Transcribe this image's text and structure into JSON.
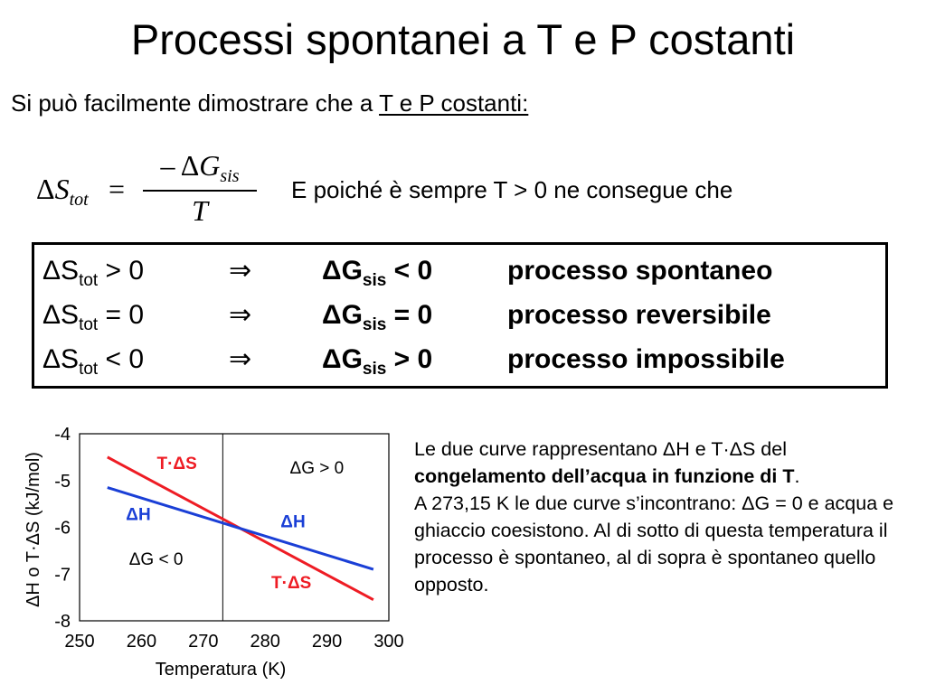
{
  "title": "Processi spontanei a T e P costanti",
  "intro": {
    "text": "Si può facilmente dimostrare che a ",
    "underlined": "T e P costanti:"
  },
  "formula": {
    "lhs_symbol": "Δ",
    "lhs_var": "S",
    "lhs_sub": "tot",
    "equals": "=",
    "numerator_prefix": "– Δ",
    "numerator_var": "G",
    "numerator_sub": "sis",
    "denominator": "T"
  },
  "consequence_text": "E poiché è sempre T > 0 ne consegue che",
  "conditions": [
    {
      "ds": "ΔS",
      "ds_sub": "tot",
      "ds_rel": " > 0",
      "implies": "⇒",
      "dg": "ΔG",
      "dg_sub": "sis",
      "dg_rel": " < 0",
      "result": "processo spontaneo"
    },
    {
      "ds": "ΔS",
      "ds_sub": "tot",
      "ds_rel": " = 0",
      "implies": "⇒",
      "dg": "ΔG",
      "dg_sub": "sis",
      "dg_rel": " = 0",
      "result": "processo reversibile"
    },
    {
      "ds": "ΔS",
      "ds_sub": "tot",
      "ds_rel": " < 0",
      "implies": "⇒",
      "dg": "ΔG",
      "dg_sub": "sis",
      "dg_rel": " > 0",
      "result": "processo impossibile"
    }
  ],
  "chart_data": {
    "type": "line",
    "xlabel": "Temperatura (K)",
    "ylabel": "ΔH o T·ΔS (kJ/mol)",
    "xlim": [
      250,
      300
    ],
    "ylim": [
      -8,
      -4
    ],
    "x_ticks": [
      250,
      260,
      270,
      280,
      290,
      300
    ],
    "y_ticks": [
      -4,
      -5,
      -6,
      -7,
      -8
    ],
    "vertical_line_x": 273.15,
    "series": [
      {
        "name": "T·ΔS",
        "color": "#ee1c24",
        "points": [
          [
            254.5,
            -4.5
          ],
          [
            297.5,
            -7.55
          ]
        ]
      },
      {
        "name": "ΔH",
        "color": "#1a3fd6",
        "points": [
          [
            254.5,
            -5.15
          ],
          [
            297.5,
            -6.9
          ]
        ]
      }
    ],
    "annotations": [
      {
        "text": "T·ΔS",
        "color": "#ee1c24",
        "bold": true,
        "at": [
          262.5,
          -4.75
        ]
      },
      {
        "text": "ΔG > 0",
        "color": "#000000",
        "bold": false,
        "at": [
          284,
          -4.85
        ]
      },
      {
        "text": "ΔH",
        "color": "#1a3fd6",
        "bold": true,
        "at": [
          257.5,
          -5.85
        ]
      },
      {
        "text": "ΔH",
        "color": "#1a3fd6",
        "bold": true,
        "at": [
          282.5,
          -6.0
        ]
      },
      {
        "text": "ΔG < 0",
        "color": "#000000",
        "bold": false,
        "at": [
          258,
          -6.8
        ]
      },
      {
        "text": "T·ΔS",
        "color": "#ee1c24",
        "bold": true,
        "at": [
          281,
          -7.3
        ]
      }
    ]
  },
  "explanation": {
    "p1_a": "Le due curve rappresentano ΔH e T·ΔS del ",
    "p1_bold": "congelamento dell’acqua in funzione di T",
    "p1_end": ".",
    "p2": "A 273,15 K le due curve s’incontrano: ΔG = 0 e acqua e ghiaccio coesistono. Al di sotto di questa temperatura il processo è spontaneo, al di sopra è spontaneo quello opposto."
  }
}
